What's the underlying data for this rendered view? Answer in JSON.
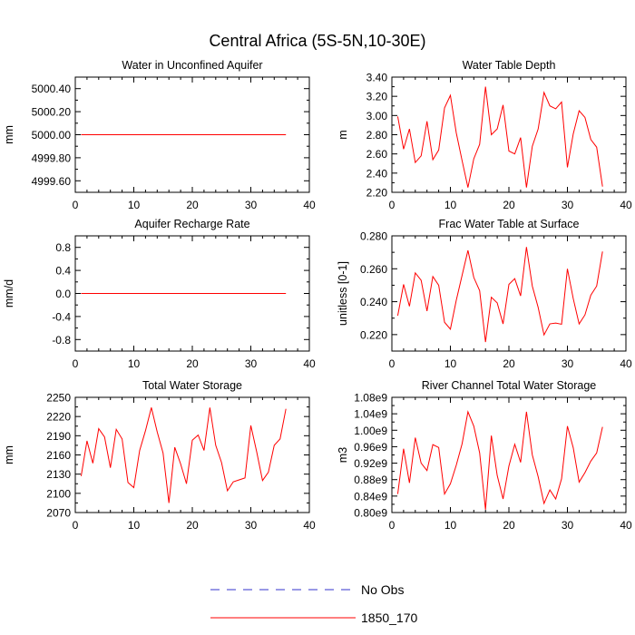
{
  "figure": {
    "title": "Central Africa (5S-5N,10-30E)"
  },
  "legend": {
    "entries": [
      {
        "label": "No Obs",
        "color": "#3333cc",
        "style": "dashed"
      },
      {
        "label": "1850_170",
        "color": "#ff0000",
        "style": "solid"
      }
    ]
  },
  "chart_data": [
    {
      "type": "line",
      "title": "Water in Unconfined Aquifer",
      "ylabel": "mm",
      "xlim": [
        0,
        40
      ],
      "xticks": [
        0,
        10,
        20,
        30,
        40
      ],
      "ylim": [
        4999.5,
        5000.5
      ],
      "yticks": [
        4999.6,
        4999.8,
        5000.0,
        5000.2,
        5000.4
      ],
      "ytick_labels": [
        "4999.60",
        "4999.80",
        "5000.00",
        "5000.20",
        "5000.40"
      ],
      "series": [
        {
          "name": "1850_170",
          "color": "#ff0000",
          "x": [
            1,
            2,
            3,
            4,
            5,
            6,
            7,
            8,
            9,
            10,
            11,
            12,
            13,
            14,
            15,
            16,
            17,
            18,
            19,
            20,
            21,
            22,
            23,
            24,
            25,
            26,
            27,
            28,
            29,
            30,
            31,
            32,
            33,
            34,
            35,
            36
          ],
          "values": [
            5000,
            5000,
            5000,
            5000,
            5000,
            5000,
            5000,
            5000,
            5000,
            5000,
            5000,
            5000,
            5000,
            5000,
            5000,
            5000,
            5000,
            5000,
            5000,
            5000,
            5000,
            5000,
            5000,
            5000,
            5000,
            5000,
            5000,
            5000,
            5000,
            5000,
            5000,
            5000,
            5000,
            5000,
            5000,
            5000
          ]
        }
      ]
    },
    {
      "type": "line",
      "title": "Water Table Depth",
      "ylabel": "m",
      "xlim": [
        0,
        40
      ],
      "xticks": [
        0,
        10,
        20,
        30,
        40
      ],
      "ylim": [
        2.2,
        3.4
      ],
      "yticks": [
        2.2,
        2.4,
        2.6,
        2.8,
        3.0,
        3.2,
        3.4
      ],
      "ytick_labels": [
        "2.20",
        "2.40",
        "2.60",
        "2.80",
        "3.00",
        "3.20",
        "3.40"
      ],
      "series": [
        {
          "name": "1850_170",
          "color": "#ff0000",
          "x": [
            1,
            2,
            3,
            4,
            5,
            6,
            7,
            8,
            9,
            10,
            11,
            12,
            13,
            14,
            15,
            16,
            17,
            18,
            19,
            20,
            21,
            22,
            23,
            24,
            25,
            26,
            27,
            28,
            29,
            30,
            31,
            32,
            33,
            34,
            35,
            36
          ],
          "values": [
            2.99,
            2.65,
            2.86,
            2.51,
            2.58,
            2.94,
            2.54,
            2.64,
            3.08,
            3.21,
            2.82,
            2.53,
            2.25,
            2.55,
            2.7,
            3.3,
            2.8,
            2.86,
            3.11,
            2.63,
            2.6,
            2.77,
            2.25,
            2.68,
            2.86,
            3.24,
            3.1,
            3.07,
            3.14,
            2.46,
            2.81,
            3.05,
            2.98,
            2.75,
            2.67,
            2.26
          ]
        }
      ]
    },
    {
      "type": "line",
      "title": "Aquifer Recharge Rate",
      "ylabel": "mm/d",
      "xlim": [
        0,
        40
      ],
      "xticks": [
        0,
        10,
        20,
        30,
        40
      ],
      "ylim": [
        -1.0,
        1.0
      ],
      "yticks": [
        -0.8,
        -0.4,
        0.0,
        0.4,
        0.8
      ],
      "ytick_labels": [
        "-0.8",
        "-0.4",
        "0.0",
        "0.4",
        "0.8"
      ],
      "series": [
        {
          "name": "1850_170",
          "color": "#ff0000",
          "x": [
            1,
            2,
            3,
            4,
            5,
            6,
            7,
            8,
            9,
            10,
            11,
            12,
            13,
            14,
            15,
            16,
            17,
            18,
            19,
            20,
            21,
            22,
            23,
            24,
            25,
            26,
            27,
            28,
            29,
            30,
            31,
            32,
            33,
            34,
            35,
            36
          ],
          "values": [
            0,
            0,
            0,
            0,
            0,
            0,
            0,
            0,
            0,
            0,
            0,
            0,
            0,
            0,
            0,
            0,
            0,
            0,
            0,
            0,
            0,
            0,
            0,
            0,
            0,
            0,
            0,
            0,
            0,
            0,
            0,
            0,
            0,
            0,
            0,
            0
          ]
        }
      ]
    },
    {
      "type": "line",
      "title": "Frac Water Table at Surface",
      "ylabel": "unitless [0-1]",
      "xlim": [
        0,
        40
      ],
      "xticks": [
        0,
        10,
        20,
        30,
        40
      ],
      "ylim": [
        0.21,
        0.28
      ],
      "yticks": [
        0.22,
        0.24,
        0.26,
        0.28
      ],
      "ytick_labels": [
        "0.220",
        "0.240",
        "0.260",
        "0.280"
      ],
      "series": [
        {
          "name": "1850_170",
          "color": "#ff0000",
          "x": [
            1,
            2,
            3,
            4,
            5,
            6,
            7,
            8,
            9,
            10,
            11,
            12,
            13,
            14,
            15,
            16,
            17,
            18,
            19,
            20,
            21,
            22,
            23,
            24,
            25,
            26,
            27,
            28,
            29,
            30,
            31,
            32,
            33,
            34,
            35,
            36
          ],
          "values": [
            0.2315,
            0.2505,
            0.2372,
            0.2575,
            0.253,
            0.2343,
            0.2553,
            0.25,
            0.2275,
            0.2233,
            0.2408,
            0.256,
            0.2712,
            0.2547,
            0.2467,
            0.2155,
            0.2427,
            0.2393,
            0.2265,
            0.2505,
            0.254,
            0.2435,
            0.2732,
            0.2495,
            0.2365,
            0.2198,
            0.2265,
            0.227,
            0.2263,
            0.26,
            0.2418,
            0.2265,
            0.232,
            0.244,
            0.2495,
            0.2705
          ]
        }
      ]
    },
    {
      "type": "line",
      "title": "Total Water Storage",
      "ylabel": "mm",
      "xlim": [
        0,
        40
      ],
      "xticks": [
        0,
        10,
        20,
        30,
        40
      ],
      "ylim": [
        2070,
        2250
      ],
      "yticks": [
        2070,
        2100,
        2130,
        2160,
        2190,
        2220,
        2250
      ],
      "ytick_labels": [
        "2070",
        "2100",
        "2130",
        "2160",
        "2190",
        "2220",
        "2250"
      ],
      "series": [
        {
          "name": "1850_170",
          "color": "#ff0000",
          "x": [
            1,
            2,
            3,
            4,
            5,
            6,
            7,
            8,
            9,
            10,
            11,
            12,
            13,
            14,
            15,
            16,
            17,
            18,
            19,
            20,
            21,
            22,
            23,
            24,
            25,
            26,
            27,
            28,
            29,
            30,
            31,
            32,
            33,
            34,
            35,
            36
          ],
          "values": [
            2127,
            2182,
            2147,
            2201,
            2188,
            2140,
            2200,
            2185,
            2117,
            2109,
            2167,
            2198,
            2234,
            2196,
            2163,
            2085,
            2172,
            2146,
            2115,
            2183,
            2191,
            2167,
            2234,
            2175,
            2148,
            2104,
            2118,
            2121,
            2124,
            2206,
            2165,
            2120,
            2133,
            2175,
            2185,
            2232
          ]
        }
      ]
    },
    {
      "type": "line",
      "title": "River Channel Total Water Storage",
      "ylabel": "m3",
      "xlim": [
        0,
        40
      ],
      "xticks": [
        0,
        10,
        20,
        30,
        40
      ],
      "ylim": [
        800000000.0,
        1080000000.0
      ],
      "yticks": [
        800000000.0,
        840000000.0,
        880000000.0,
        920000000.0,
        960000000.0,
        1000000000.0,
        1040000000.0,
        1080000000.0
      ],
      "ytick_labels": [
        "0.80e9",
        "0.84e9",
        "0.88e9",
        "0.92e9",
        "0.96e9",
        "1.00e9",
        "1.04e9",
        "1.08e9"
      ],
      "series": [
        {
          "name": "1850_170",
          "color": "#ff0000",
          "x": [
            1,
            2,
            3,
            4,
            5,
            6,
            7,
            8,
            9,
            10,
            11,
            12,
            13,
            14,
            15,
            16,
            17,
            18,
            19,
            20,
            21,
            22,
            23,
            24,
            25,
            26,
            27,
            28,
            29,
            30,
            31,
            32,
            33,
            34,
            35,
            36
          ],
          "values": [
            845000000.0,
            955000000.0,
            872000000.0,
            982000000.0,
            920000000.0,
            902000000.0,
            965000000.0,
            958000000.0,
            845000000.0,
            870000000.0,
            915000000.0,
            967000000.0,
            1045000000.0,
            1010000000.0,
            945000000.0,
            807000000.0,
            987000000.0,
            890000000.0,
            833000000.0,
            913000000.0,
            966000000.0,
            922000000.0,
            1045000000.0,
            940000000.0,
            887000000.0,
            822000000.0,
            855000000.0,
            833000000.0,
            882000000.0,
            1010000000.0,
            957000000.0,
            874000000.0,
            897000000.0,
            925000000.0,
            945000000.0,
            1008000000.0
          ]
        }
      ]
    }
  ]
}
